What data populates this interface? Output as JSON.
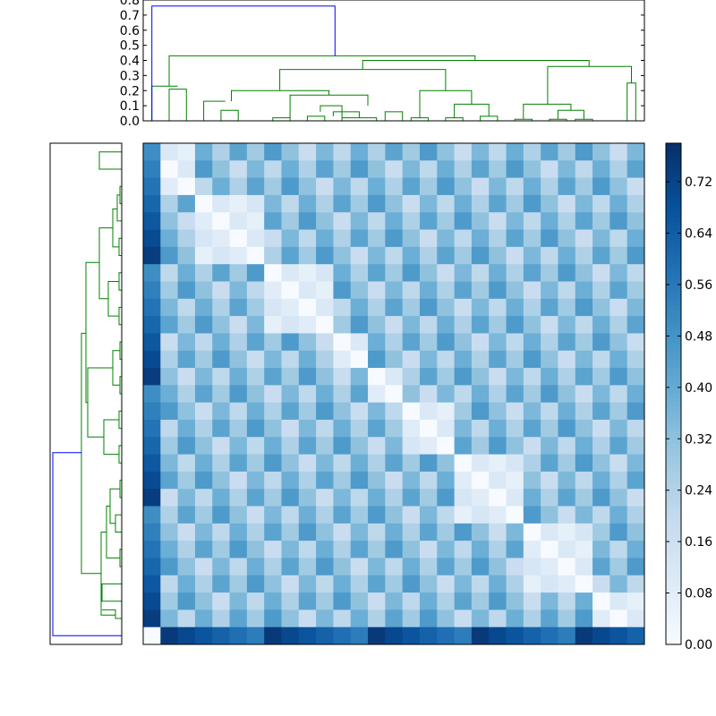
{
  "chart_data": [
    {
      "type": "dendrogram",
      "orientation": "top",
      "ylim": [
        0,
        0.8
      ],
      "ytick_labels": [
        "0.0",
        "0.1",
        "0.2",
        "0.3",
        "0.4",
        "0.5",
        "0.6",
        "0.7",
        "0.8"
      ],
      "ytick_values": [
        0,
        0.1,
        0.2,
        0.3,
        0.4,
        0.5,
        0.6,
        0.7,
        0.8
      ],
      "leaf_count": 29,
      "colors": {
        "cluster": "#008000",
        "root": "#0000ff"
      },
      "links": [
        {
          "l": [
            0.5,
            0
          ],
          "r": [
            2.0,
            0.76
          ],
          "color": "root"
        },
        {
          "l": [
            1.5,
            0.23
          ],
          "r": [
            18.7,
            0.43
          ],
          "color": "cluster"
        },
        {
          "l": [
            1,
            0.23
          ],
          "r": [
            2,
            0.21
          ],
          "color": "cluster"
        },
        {
          "l": [
            1,
            0
          ],
          "r": [
            2,
            0.21
          ],
          "color": "cluster"
        },
        {
          "l": [
            2,
            0
          ],
          "r": [
            3,
            0
          ],
          "color": "cluster"
        }
      ]
    },
    {
      "type": "dendrogram",
      "orientation": "left",
      "leaf_count": 29,
      "colors": {
        "cluster": "#008000",
        "root": "#0000ff"
      }
    },
    {
      "type": "heatmap",
      "rows": 29,
      "cols": 29,
      "colormap": "Blues",
      "vmin": 0.0,
      "vmax": 0.78,
      "colorbar_tick_labels": [
        "0.00",
        "0.08",
        "0.16",
        "0.24",
        "0.32",
        "0.40",
        "0.48",
        "0.56",
        "0.64",
        "0.72"
      ],
      "colorbar_tick_values": [
        0.0,
        0.08,
        0.16,
        0.24,
        0.32,
        0.4,
        0.48,
        0.56,
        0.64,
        0.72
      ],
      "row_template": [
        0.58,
        0.42,
        0.3,
        0.4,
        0.3,
        0.28,
        0.28,
        0.26,
        0.26,
        0.28,
        0.3,
        0.4,
        0.35,
        0.38,
        0.25,
        0.28,
        0.6
      ],
      "values": []
    }
  ]
}
